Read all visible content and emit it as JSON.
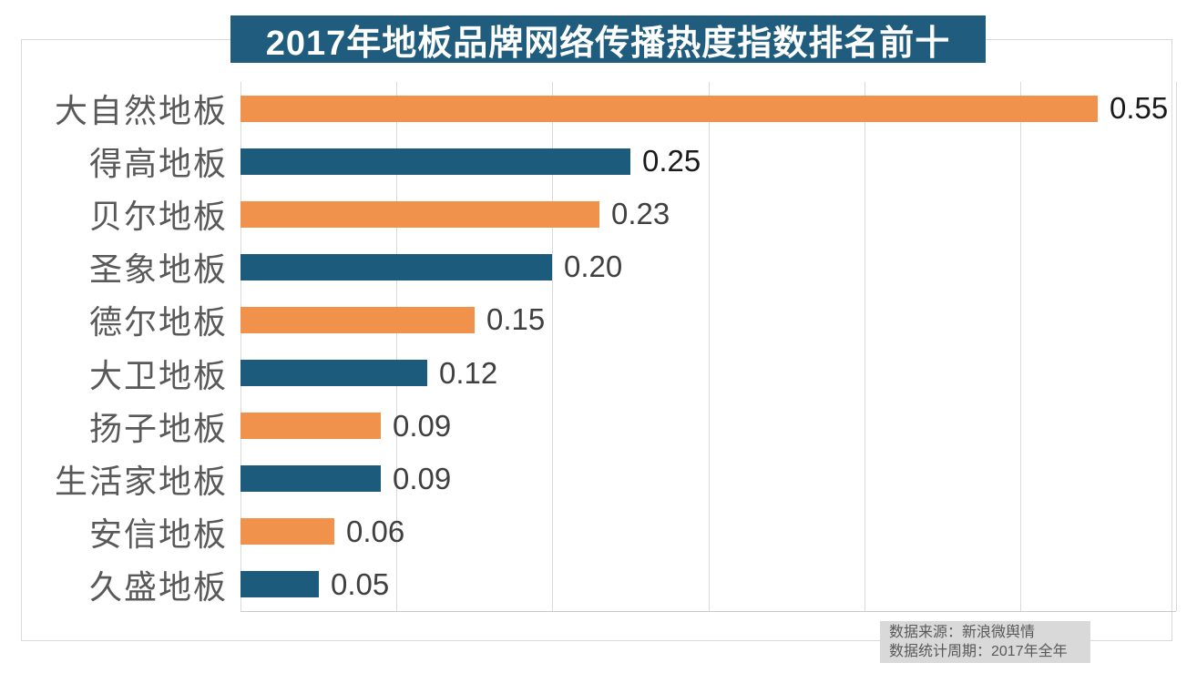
{
  "title": "2017年地板品牌网络传播热度指数排名前十",
  "chart_data": {
    "type": "bar",
    "orientation": "horizontal",
    "title": "2017年地板品牌网络传播热度指数排名前十",
    "categories": [
      "大自然地板",
      "得高地板",
      "贝尔地板",
      "圣象地板",
      "德尔地板",
      "大卫地板",
      "扬子地板",
      "生活家地板",
      "安信地板",
      "久盛地板"
    ],
    "values": [
      0.55,
      0.25,
      0.23,
      0.2,
      0.15,
      0.12,
      0.09,
      0.09,
      0.06,
      0.05
    ],
    "data_labels": [
      "0.55",
      "0.25",
      "0.23",
      "0.20",
      "0.15",
      "0.12",
      "0.09",
      "0.09",
      "0.06",
      "0.05"
    ],
    "xlabel": "",
    "ylabel": "",
    "xlim": [
      0,
      0.6
    ],
    "gridline_interval": 0.1,
    "gridline_count": 7,
    "grid": true,
    "legend": "none",
    "bar_color_pattern": "alternating",
    "bar_colors": [
      "#F0924C",
      "#1D5B7C"
    ],
    "emphasized_label_indices": [
      0,
      1
    ]
  },
  "source_note": {
    "line1": "数据来源：新浪微舆情",
    "line2": "数据统计周期：2017年全年"
  },
  "colors": {
    "orange_bar": "#F0924C",
    "teal_bar": "#1D5B7C",
    "title_bg": "#1F5C7E",
    "title_text": "#FFFFFF",
    "category_label": "#595959",
    "value_label": "#404040",
    "value_label_emphasis": "#1A1A1A",
    "gridline": "#D9D9D9",
    "axis_line": "#C9C9C9",
    "frame_border": "#D9D9D9",
    "note_bg": "#D9D9D9",
    "note_text": "#595959",
    "background": "#FFFFFF"
  }
}
